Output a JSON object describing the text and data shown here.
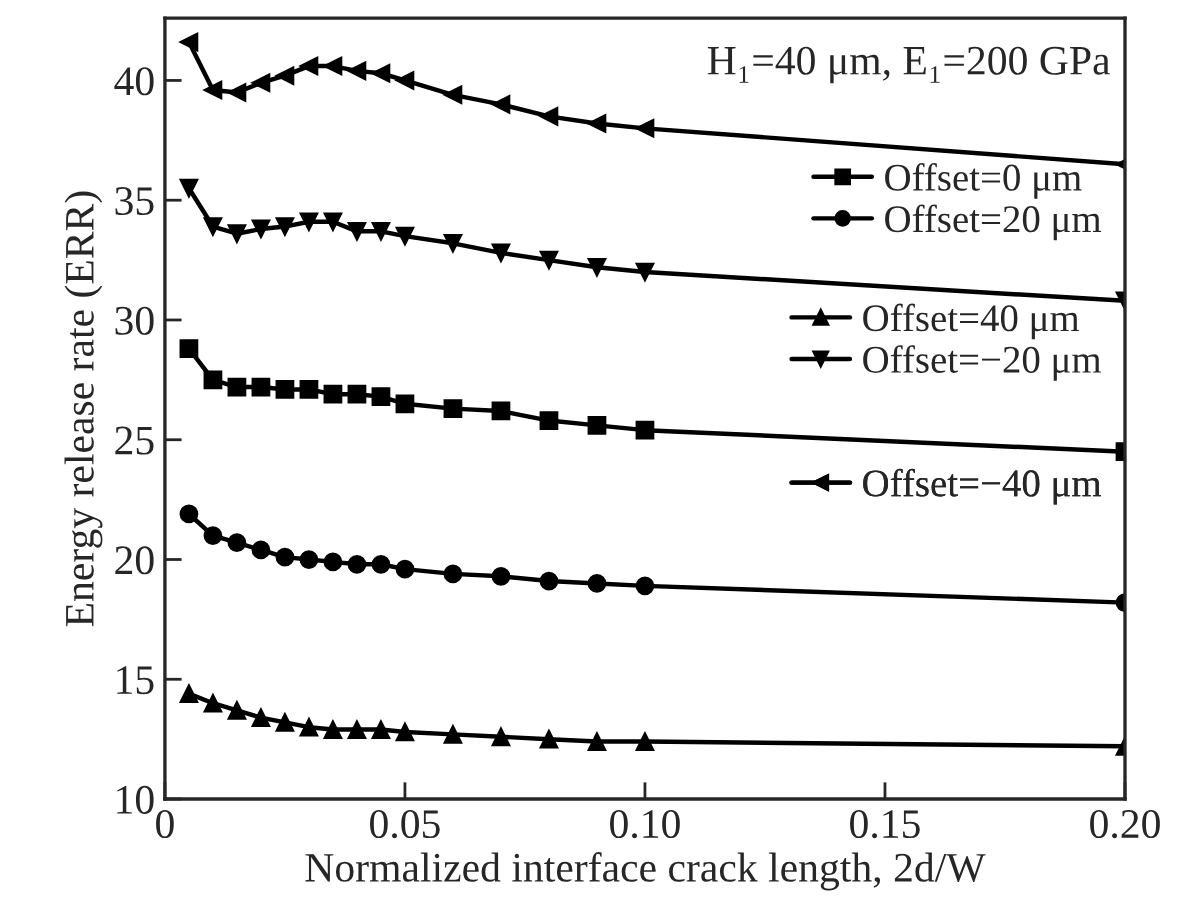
{
  "chart_data": {
    "type": "line",
    "xlabel": "Normalized interface crack length, 2d/W",
    "ylabel": "Energy release rate (ERR)",
    "annotations": [
      "H₁=40 μm, E₁=200 GPa"
    ],
    "x": [
      0.005,
      0.01,
      0.015,
      0.02,
      0.025,
      0.03,
      0.035,
      0.04,
      0.045,
      0.05,
      0.06,
      0.07,
      0.08,
      0.09,
      0.1,
      0.2
    ],
    "series": [
      {
        "name": "Offset=0 μm",
        "color": "#000000",
        "marker": "square",
        "values": [
          28.8,
          27.5,
          27.2,
          27.2,
          27.1,
          27.1,
          26.9,
          26.9,
          26.8,
          26.5,
          26.3,
          26.2,
          25.8,
          25.6,
          25.4,
          24.5
        ]
      },
      {
        "name": "Offset=20 μm",
        "color": "#000000",
        "marker": "circle",
        "values": [
          21.9,
          21.0,
          20.7,
          20.4,
          20.1,
          20.0,
          19.9,
          19.8,
          19.8,
          19.6,
          19.4,
          19.3,
          19.1,
          19.0,
          18.9,
          18.2
        ]
      },
      {
        "name": "Offset=40 μm",
        "color": "#000000",
        "marker": "triangle",
        "values": [
          14.4,
          14.0,
          13.7,
          13.4,
          13.2,
          13.0,
          12.9,
          12.9,
          12.9,
          12.8,
          12.7,
          12.6,
          12.5,
          12.4,
          12.4,
          12.2
        ]
      },
      {
        "name": "Offset=−20 μm",
        "color": "#000000",
        "marker": "triangle_down",
        "values": [
          35.5,
          33.9,
          33.6,
          33.8,
          33.9,
          34.1,
          34.1,
          33.7,
          33.7,
          33.5,
          33.2,
          32.8,
          32.5,
          32.2,
          32.0,
          30.8
        ]
      },
      {
        "name": "Offset=−40 μm",
        "color": "#000000",
        "marker": "triangle_left",
        "values": [
          41.6,
          39.6,
          39.5,
          39.9,
          40.2,
          40.6,
          40.6,
          40.4,
          40.3,
          40.0,
          39.4,
          39.0,
          38.5,
          38.2,
          38.0,
          36.5
        ]
      }
    ],
    "xlim": [
      0,
      0.2
    ],
    "xticks": [
      0,
      0.05,
      {
        "value": 0.1,
        "label": "0.10"
      },
      0.15,
      {
        "value": 0.2,
        "label": "0.20"
      }
    ],
    "ylim": [
      10,
      42.6
    ],
    "yticks": [
      10,
      15,
      20,
      25,
      30,
      35,
      40
    ],
    "legend": "right",
    "line_style": "solid",
    "grid": false
  }
}
